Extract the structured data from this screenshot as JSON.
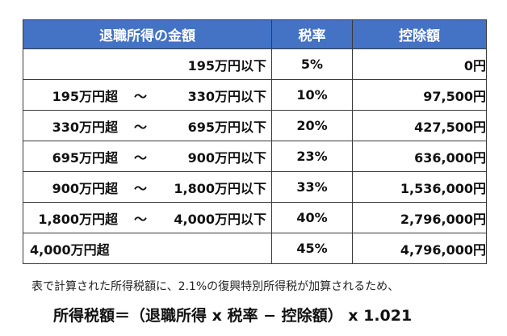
{
  "table": {
    "headers": {
      "income": "退職所得の金額",
      "rate": "税率",
      "deduction": "控除額"
    },
    "rows": [
      {
        "from": "",
        "tilde": "",
        "to": "195万円以下",
        "rate": "5%",
        "deduction": "0円"
      },
      {
        "from": "195万円超",
        "tilde": "〜",
        "to": "330万円以下",
        "rate": "10%",
        "deduction": "97,500円"
      },
      {
        "from": "330万円超",
        "tilde": "〜",
        "to": "695万円以下",
        "rate": "20%",
        "deduction": "427,500円"
      },
      {
        "from": "695万円超",
        "tilde": "〜",
        "to": "900万円以下",
        "rate": "23%",
        "deduction": "636,000円"
      },
      {
        "from": "900万円超",
        "tilde": "〜",
        "to": "1,800万円以下",
        "rate": "33%",
        "deduction": "1,536,000円"
      },
      {
        "from": "1,800万円超",
        "tilde": "〜",
        "to": "4,000万円以下",
        "rate": "40%",
        "deduction": "2,796,000円"
      },
      {
        "from": "4,000万円超",
        "tilde": "",
        "to": "",
        "rate": "45%",
        "deduction": "4,796,000円"
      }
    ]
  },
  "note": "表で計算された所得税額に、2.1%の復興特別所得税が加算されるため、",
  "formula": "所得税額＝（退職所得 x 税率 − 控除額） x 1.021",
  "colors": {
    "header_background": "#4472c4",
    "header_text": "#ffffff",
    "border": "#3a3a3a"
  }
}
